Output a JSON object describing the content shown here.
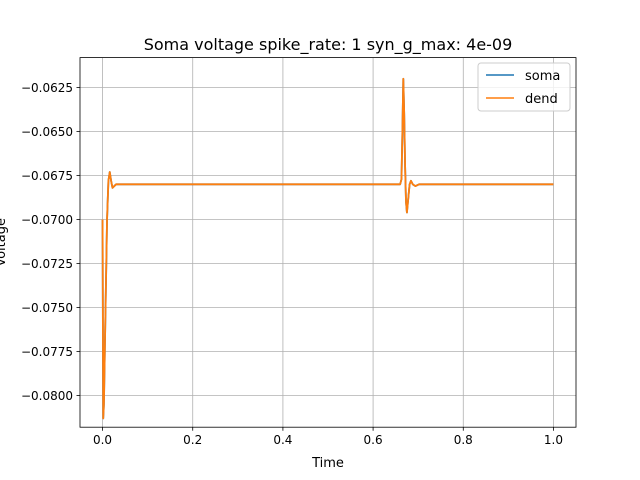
{
  "chart_data": {
    "type": "line",
    "title": "Soma voltage spike_rate: 1 syn_g_max: 4e-09",
    "xlabel": "Time",
    "ylabel": "Voltage",
    "xlim": [
      -0.05,
      1.05
    ],
    "ylim": [
      -0.0818,
      -0.0608
    ],
    "x_ticks": [
      0.0,
      0.2,
      0.4,
      0.6,
      0.8,
      1.0
    ],
    "x_tick_labels": [
      "0.0",
      "0.2",
      "0.4",
      "0.6",
      "0.8",
      "1.0"
    ],
    "y_ticks": [
      -0.0625,
      -0.065,
      -0.0675,
      -0.07,
      -0.0725,
      -0.075,
      -0.0775,
      -0.08
    ],
    "y_tick_labels": [
      "−0.0625",
      "−0.0650",
      "−0.0675",
      "−0.0700",
      "−0.0725",
      "−0.0750",
      "−0.0775",
      "−0.0800"
    ],
    "grid": true,
    "legend_position": "top-right",
    "series": [
      {
        "name": "soma",
        "color": "#1f77b4",
        "x": [
          0.0,
          0.0015,
          0.003,
          0.006,
          0.01,
          0.013,
          0.016,
          0.019,
          0.022,
          0.026,
          0.03,
          0.035,
          0.045,
          0.1,
          0.3,
          0.5,
          0.66,
          0.663,
          0.665,
          0.667,
          0.669,
          0.671,
          0.673,
          0.675,
          0.678,
          0.681,
          0.684,
          0.688,
          0.694,
          0.702,
          0.72,
          0.8,
          0.9,
          1.0
        ],
        "y": [
          -0.07,
          -0.0813,
          -0.0805,
          -0.076,
          -0.07,
          -0.0678,
          -0.0673,
          -0.0678,
          -0.0682,
          -0.0681,
          -0.068,
          -0.068,
          -0.068,
          -0.068,
          -0.068,
          -0.068,
          -0.068,
          -0.0677,
          -0.065,
          -0.062,
          -0.064,
          -0.067,
          -0.069,
          -0.0696,
          -0.0688,
          -0.068,
          -0.0678,
          -0.068,
          -0.0681,
          -0.068,
          -0.068,
          -0.068,
          -0.068,
          -0.068
        ]
      },
      {
        "name": "dend",
        "color": "#ff7f0e",
        "x": [
          0.0,
          0.0015,
          0.003,
          0.006,
          0.01,
          0.013,
          0.016,
          0.019,
          0.022,
          0.026,
          0.03,
          0.035,
          0.045,
          0.1,
          0.3,
          0.5,
          0.66,
          0.663,
          0.665,
          0.667,
          0.669,
          0.671,
          0.673,
          0.675,
          0.678,
          0.681,
          0.684,
          0.688,
          0.694,
          0.702,
          0.72,
          0.8,
          0.9,
          1.0
        ],
        "y": [
          -0.07,
          -0.0813,
          -0.0805,
          -0.076,
          -0.07,
          -0.0678,
          -0.0673,
          -0.0678,
          -0.0682,
          -0.0681,
          -0.068,
          -0.068,
          -0.068,
          -0.068,
          -0.068,
          -0.068,
          -0.068,
          -0.0677,
          -0.065,
          -0.062,
          -0.064,
          -0.067,
          -0.069,
          -0.0696,
          -0.0688,
          -0.068,
          -0.0678,
          -0.068,
          -0.0681,
          -0.068,
          -0.068,
          -0.068,
          -0.068,
          -0.068
        ]
      }
    ]
  }
}
